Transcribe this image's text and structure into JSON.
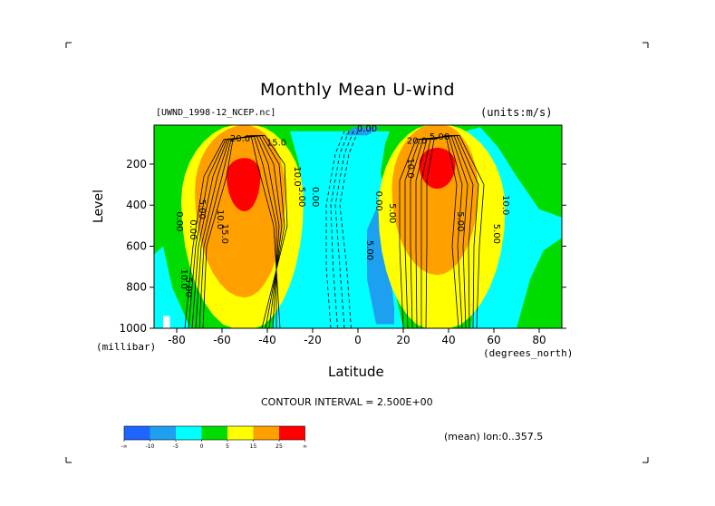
{
  "chart_data": {
    "type": "heatmap",
    "title": "Monthly Mean U-wind",
    "dataset": "[UWND_1998-12_NCEP.nc]",
    "units": "(units:m/s)",
    "xlabel": "Latitude",
    "x_unit": "(degrees_north)",
    "ylabel": "Level",
    "y_unit": "(millibar)",
    "xlim": [
      -90,
      90
    ],
    "ylim": [
      1000,
      10
    ],
    "y_reversed": true,
    "x_ticks": [
      "-80",
      "-60",
      "-40",
      "-20",
      "0",
      "20",
      "40",
      "60",
      "80"
    ],
    "x_tick_values": [
      -80,
      -60,
      -40,
      -20,
      0,
      20,
      40,
      60,
      80
    ],
    "y_ticks": [
      "200",
      "400",
      "600",
      "800",
      "1000"
    ],
    "y_tick_values": [
      200,
      400,
      600,
      800,
      1000
    ],
    "contour_interval_text": "CONTOUR INTERVAL = 2.500E+00",
    "averaging_text": "(mean) lon:0..357.5",
    "contour_labels": [
      "20.0",
      "15.0",
      "10.0",
      "5.00",
      "0.00",
      "5.00",
      "0.00",
      "5.00",
      "10.0",
      "5.00",
      "10.0",
      "5.00",
      "5.00",
      "0.00",
      "0.00",
      "5.00",
      "10.0",
      "15.0",
      "20.0",
      "10.0",
      "5.00",
      "0.00"
    ],
    "colorbar": {
      "bins": [
        {
          "label": "-∞",
          "color": "#1e64ff"
        },
        {
          "label": "-10",
          "color": "#1ea0f0"
        },
        {
          "label": "-5",
          "color": "#00ffff"
        },
        {
          "label": "0",
          "color": "#00dc00"
        },
        {
          "label": "5",
          "color": "#ffff00"
        },
        {
          "label": "15",
          "color": "#ffa000"
        },
        {
          "label": "25",
          "color": "#ff0000"
        },
        {
          "label": "∞",
          "color": ""
        }
      ]
    },
    "jets": [
      {
        "lat": -50,
        "level": 250,
        "max_value": 25,
        "color": "#ff0000"
      },
      {
        "lat": 35,
        "level": 200,
        "max_value": 30,
        "color": "#ff0000"
      }
    ]
  }
}
